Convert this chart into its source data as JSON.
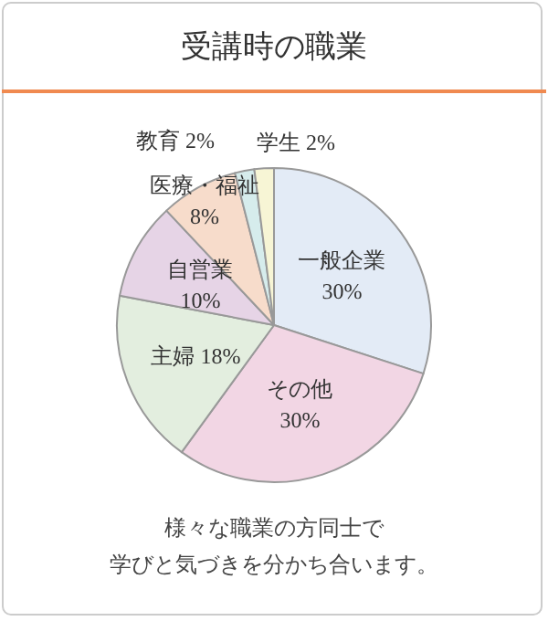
{
  "chart_data": {
    "type": "pie",
    "title": "受講時の職業",
    "categories": [
      "一般企業",
      "その他",
      "主婦",
      "自営業",
      "医療・福祉",
      "教育",
      "学生"
    ],
    "values": [
      30,
      30,
      18,
      10,
      8,
      2,
      2
    ],
    "value_labels": [
      "30%",
      "30%",
      "18%",
      "10%",
      "8%",
      "2%",
      "2%"
    ],
    "colors": [
      "#e3ebf6",
      "#f2d6e4",
      "#e3eedf",
      "#e6d4e6",
      "#f7dccb",
      "#d6ecec",
      "#f7f5d5"
    ],
    "annotations": [
      "様々な職業の方同士で",
      "学びと気づきを分かち合います。"
    ],
    "legend": false
  }
}
